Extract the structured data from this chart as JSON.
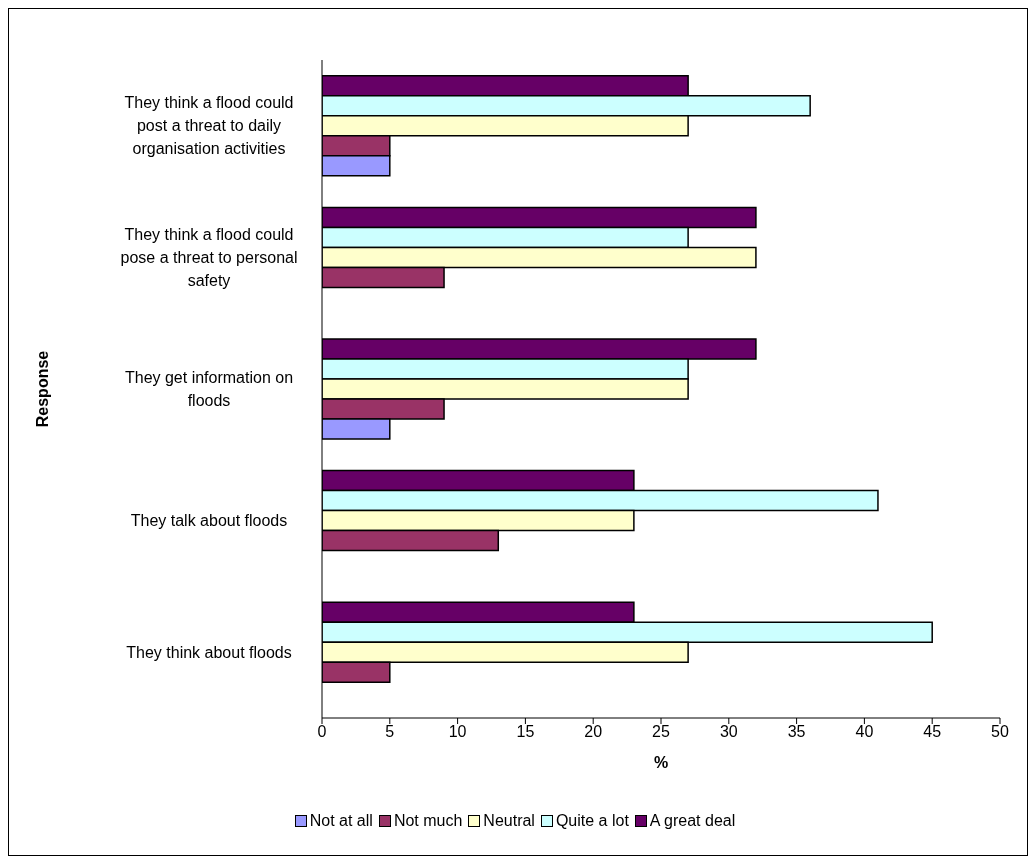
{
  "chart_data": {
    "type": "bar",
    "orientation": "horizontal",
    "xlabel": "%",
    "ylabel": "Response",
    "categories": [
      "They think a flood could post a threat to daily organisation activities",
      "They think a flood could pose a threat to personal safety",
      "They get information on floods",
      "They talk about floods",
      "They think about floods"
    ],
    "series": [
      {
        "name": "Not at all",
        "color": "#9999ff",
        "values": [
          5,
          null,
          5,
          null,
          null
        ]
      },
      {
        "name": "Not much",
        "color": "#993366",
        "values": [
          5,
          9,
          9,
          13,
          5
        ]
      },
      {
        "name": "Neutral",
        "color": "#ffffcc",
        "values": [
          27,
          32,
          27,
          23,
          27
        ]
      },
      {
        "name": "Quite a lot",
        "color": "#ccffff",
        "values": [
          36,
          27,
          27,
          41,
          45
        ]
      },
      {
        "name": "A great deal",
        "color": "#660066",
        "values": [
          27,
          32,
          32,
          23,
          23
        ]
      }
    ],
    "xlim": [
      0,
      50
    ],
    "xticks": [
      0,
      5,
      10,
      15,
      20,
      25,
      30,
      35,
      40,
      45,
      50
    ],
    "grid": false,
    "legend": "bottom"
  }
}
